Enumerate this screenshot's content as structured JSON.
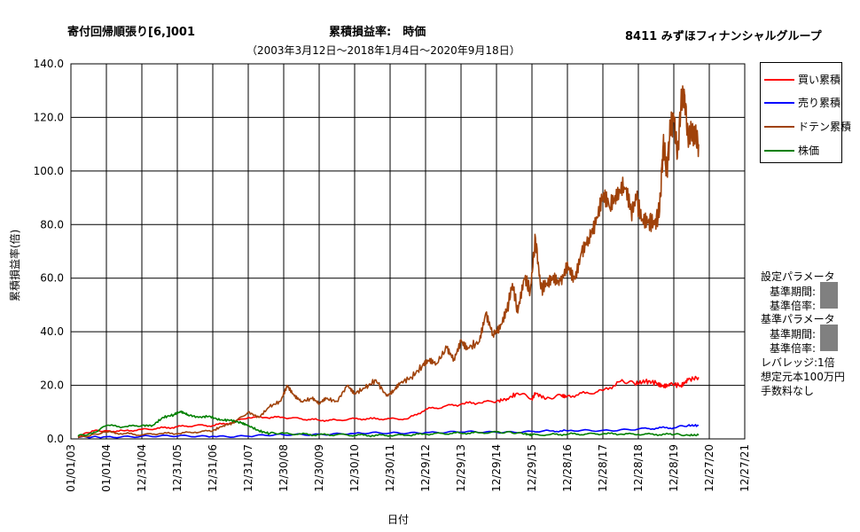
{
  "header": {
    "left_title": "寄付回帰順張り[6,]001",
    "center_title": "累積損益率:　時価",
    "center_subtitle": "（2003年3月12日～2018年1月4日～2020年9月18日）",
    "right_title": "8411 みずほフィナンシャルグループ"
  },
  "chart_data": {
    "type": "line",
    "xlabel": "日付",
    "ylabel": "累積損益率(倍)",
    "ylim": [
      0,
      140
    ],
    "y_ticks": [
      "0.0",
      "20.0",
      "40.0",
      "60.0",
      "80.0",
      "100.0",
      "120.0",
      "140.0"
    ],
    "x_tick_labels": [
      "01/01/03",
      "01/01/04",
      "12/31/04",
      "12/31/05",
      "12/31/06",
      "12/31/07",
      "12/30/08",
      "12/30/09",
      "12/30/10",
      "12/30/11",
      "12/29/12",
      "12/29/13",
      "12/29/14",
      "12/29/15",
      "12/28/16",
      "12/28/17",
      "12/28/18",
      "12/28/19",
      "12/27/20",
      "12/27/21"
    ],
    "grid": true,
    "legend_position": "right",
    "series": [
      {
        "name": "買い累積",
        "color": "#ff0000",
        "x": [
          2003.2,
          2003.6,
          2004.0,
          2004.5,
          2005.0,
          2005.5,
          2006.0,
          2006.5,
          2007.0,
          2007.5,
          2008.0,
          2008.5,
          2009.0,
          2009.5,
          2010.0,
          2010.5,
          2011.0,
          2011.5,
          2012.0,
          2012.5,
          2013.0,
          2013.5,
          2014.0,
          2014.5,
          2015.0,
          2015.3,
          2015.6,
          2016.0,
          2016.1,
          2016.4,
          2016.8,
          2017.0,
          2017.5,
          2018.0,
          2018.5,
          2018.9,
          2019.2,
          2019.5,
          2019.7,
          2019.9,
          2020.2,
          2020.4,
          2020.7
        ],
        "values": [
          1,
          3,
          3,
          3,
          3.5,
          4,
          4.5,
          5,
          5,
          6,
          8,
          8,
          8,
          7.5,
          7,
          7,
          7.5,
          7.5,
          7.5,
          7.5,
          11,
          12,
          13,
          13.5,
          14,
          15,
          17,
          15,
          17,
          15,
          16.5,
          16,
          17,
          18,
          21.5,
          20.5,
          21.5,
          21,
          20,
          20.5,
          20,
          22,
          23
        ]
      },
      {
        "name": "売り累積",
        "color": "#0000ff",
        "x": [
          2003.2,
          2004.0,
          2005.0,
          2006.0,
          2007.0,
          2008.0,
          2009.0,
          2010.0,
          2011.0,
          2012.0,
          2013.0,
          2014.0,
          2015.0,
          2016.0,
          2016.5,
          2017.0,
          2018.0,
          2019.0,
          2019.5,
          2020.0,
          2020.4,
          2020.7
        ],
        "values": [
          0.5,
          0.8,
          1,
          1,
          1,
          1,
          1.5,
          1.8,
          2,
          2.2,
          2.4,
          2.5,
          2.5,
          2.8,
          3,
          3,
          3.2,
          3.7,
          4,
          4.2,
          5,
          5
        ]
      },
      {
        "name": "ドテン累積",
        "color": "#a0420a",
        "x": [
          2003.2,
          2004.0,
          2004.5,
          2005.0,
          2005.5,
          2006.0,
          2006.5,
          2007.0,
          2007.3,
          2007.6,
          2008.0,
          2008.3,
          2008.6,
          2008.9,
          2009.1,
          2009.3,
          2009.5,
          2009.8,
          2010.0,
          2010.2,
          2010.5,
          2010.8,
          2011.0,
          2011.3,
          2011.6,
          2011.9,
          2012.1,
          2012.3,
          2012.6,
          2012.9,
          2013.1,
          2013.3,
          2013.6,
          2013.8,
          2014.0,
          2014.2,
          2014.5,
          2014.7,
          2014.9,
          2015.1,
          2015.3,
          2015.45,
          2015.6,
          2015.8,
          2015.95,
          2016.1,
          2016.25,
          2016.4,
          2016.6,
          2016.8,
          2017.0,
          2017.2,
          2017.4,
          2017.6,
          2017.8,
          2018.0,
          2018.2,
          2018.4,
          2018.6,
          2018.8,
          2018.95,
          2019.1,
          2019.3,
          2019.45,
          2019.6,
          2019.7,
          2019.8,
          2019.9,
          2020.0,
          2020.1,
          2020.2,
          2020.3,
          2020.4,
          2020.5,
          2020.6,
          2020.7
        ],
        "values": [
          0.5,
          2.5,
          2,
          1.5,
          2,
          2,
          2.5,
          3,
          5,
          6,
          10,
          8,
          12,
          14,
          20,
          16,
          14,
          15,
          13,
          15,
          14,
          20,
          17,
          19,
          22,
          16,
          18,
          21,
          23,
          27,
          29,
          28,
          34,
          30,
          37,
          34,
          36,
          47,
          39,
          41,
          48,
          58,
          47,
          60,
          55,
          75,
          56,
          58,
          61,
          59,
          66,
          60,
          70,
          75,
          80,
          90,
          86,
          89,
          94,
          85,
          90,
          82,
          82,
          80,
          85,
          110,
          100,
          115,
          120,
          105,
          125,
          129,
          112,
          115,
          113,
          110
        ]
      },
      {
        "name": "株価",
        "color": "#008000",
        "x": [
          2003.2,
          2003.6,
          2004.0,
          2004.5,
          2005.0,
          2005.3,
          2005.6,
          2005.9,
          2006.1,
          2006.3,
          2006.6,
          2006.9,
          2007.2,
          2007.5,
          2007.8,
          2008.0,
          2008.3,
          2008.6,
          2009.0,
          2009.5,
          2010.0,
          2010.5,
          2011.0,
          2011.5,
          2012.0,
          2012.5,
          2013.0,
          2013.5,
          2014.0,
          2014.5,
          2015.0,
          2015.4,
          2015.8,
          2016.0,
          2016.5,
          2017.0,
          2017.5,
          2018.0,
          2018.5,
          2019.0,
          2019.5,
          2020.0,
          2020.4,
          2020.7
        ],
        "values": [
          1,
          2,
          5,
          4.5,
          5,
          5,
          8,
          9,
          10,
          9,
          8,
          8.5,
          7,
          7,
          6,
          5,
          3,
          2,
          2,
          1.8,
          1.5,
          1.6,
          1.4,
          1.3,
          1.3,
          1.4,
          1.8,
          2,
          2.2,
          2.3,
          2.5,
          2.6,
          2,
          1.5,
          1.6,
          1.8,
          1.8,
          1.9,
          1.8,
          1.7,
          1.7,
          1.6,
          1.4,
          1.4
        ]
      }
    ]
  },
  "params": {
    "setting_title": "設定パラメータ",
    "setting_period": "基準期間:",
    "setting_ratio": "基準倍率:",
    "base_title": "基準パラメータ",
    "base_period": "基準期間:",
    "base_ratio": "基準倍率:",
    "leverage": "レバレッジ:1倍",
    "capital": "想定元本100万円",
    "fee": "手数料なし"
  }
}
